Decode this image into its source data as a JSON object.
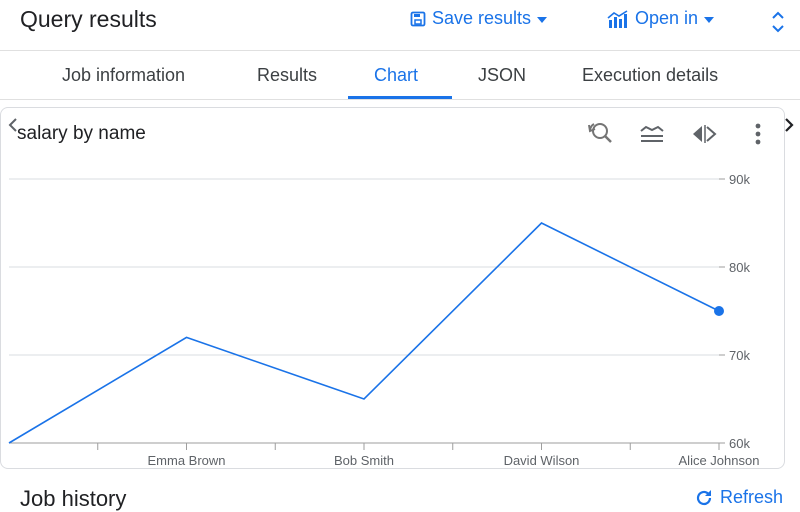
{
  "header": {
    "title": "Query results",
    "save_label": "Save results",
    "open_label": "Open in"
  },
  "tabs": [
    {
      "label": "Job information"
    },
    {
      "label": "Results"
    },
    {
      "label": "Chart",
      "active": true
    },
    {
      "label": "JSON"
    },
    {
      "label": "Execution details"
    }
  ],
  "chart_panel": {
    "title": "salary by name",
    "icons": [
      "zoom-reset-icon",
      "layers-icon",
      "code-arrows-icon",
      "more-vert-icon"
    ]
  },
  "chart_data": {
    "type": "line",
    "title": "salary by name",
    "categories": [
      "",
      "Emma Brown",
      "Bob Smith",
      "David Wilson",
      "Alice Johnson"
    ],
    "series": [
      {
        "values": [
          60000,
          72000,
          65000,
          85000,
          75000
        ]
      }
    ],
    "ylim": [
      60000,
      90000
    ],
    "yticks": [
      60000,
      70000,
      80000,
      90000
    ],
    "ytick_labels": [
      "60k",
      "70k",
      "80k",
      "90k"
    ],
    "grid": true,
    "y_axis_position": "right",
    "line_color": "#1a73e8"
  },
  "footer": {
    "job_history_title": "Job history",
    "refresh_label": "Refresh"
  },
  "colors": {
    "accent": "#1a73e8",
    "text": "#202124",
    "muted": "#5f6368",
    "divider": "#e0e0e0"
  }
}
